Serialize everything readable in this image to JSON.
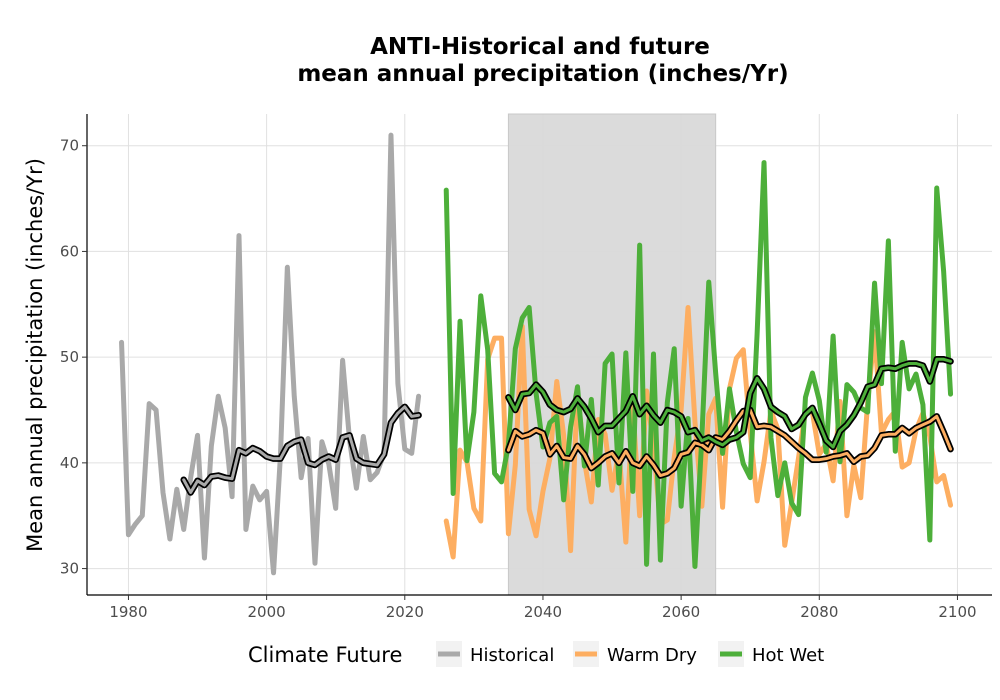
{
  "chart_data": {
    "type": "line",
    "title_line1": "ANTI-Historical and future",
    "title_line2": "mean annual precipitation (inches/Yr)",
    "xlabel": "",
    "ylabel": "Mean annual precipitation (inches/Yr)",
    "xlim": [
      1974,
      2105
    ],
    "ylim": [
      27.5,
      73
    ],
    "x_ticks": [
      1980,
      2000,
      2020,
      2040,
      2060,
      2080,
      2100
    ],
    "y_ticks": [
      30,
      40,
      50,
      60,
      70
    ],
    "grid": true,
    "shaded_period": [
      2035,
      2065
    ],
    "legend": {
      "title": "Climate Future",
      "position": "bottom",
      "entries": [
        {
          "label": "Historical",
          "color": "#a9a9a9"
        },
        {
          "label": "Warm Dry",
          "color": "#fdae61"
        },
        {
          "label": "Hot Wet",
          "color": "#4daf3a"
        }
      ]
    },
    "series": [
      {
        "name": "Historical",
        "color": "#a9a9a9",
        "x": [
          1979,
          1980,
          1981,
          1982,
          1983,
          1984,
          1985,
          1986,
          1987,
          1988,
          1989,
          1990,
          1991,
          1992,
          1993,
          1994,
          1995,
          1996,
          1997,
          1998,
          1999,
          2000,
          2001,
          2002,
          2003,
          2004,
          2005,
          2006,
          2007,
          2008,
          2009,
          2010,
          2011,
          2012,
          2013,
          2014,
          2015,
          2016,
          2017,
          2018,
          2019,
          2020,
          2021,
          2022
        ],
        "y": [
          51.4,
          33.2,
          34.2,
          35.0,
          45.6,
          45.0,
          37.2,
          32.8,
          37.5,
          33.7,
          38.6,
          42.6,
          31.0,
          41.6,
          46.3,
          43.3,
          36.8,
          61.5,
          33.7,
          37.8,
          36.5,
          37.3,
          29.6,
          40.7,
          58.5,
          46.3,
          38.6,
          42.3,
          30.5,
          42.0,
          39.9,
          35.7,
          49.7,
          42.2,
          37.6,
          42.5,
          38.4,
          39.1,
          40.9,
          71.0,
          47.5,
          41.3,
          40.9,
          46.3
        ]
      },
      {
        "name": "Warm Dry",
        "color": "#fdae61",
        "x": [
          2026,
          2027,
          2028,
          2029,
          2030,
          2031,
          2032,
          2033,
          2034,
          2035,
          2036,
          2037,
          2038,
          2039,
          2040,
          2041,
          2042,
          2043,
          2044,
          2045,
          2046,
          2047,
          2048,
          2049,
          2050,
          2051,
          2052,
          2053,
          2054,
          2055,
          2056,
          2057,
          2058,
          2059,
          2060,
          2061,
          2062,
          2063,
          2064,
          2065,
          2066,
          2067,
          2068,
          2069,
          2070,
          2071,
          2072,
          2073,
          2074,
          2075,
          2076,
          2077,
          2078,
          2079,
          2080,
          2081,
          2082,
          2083,
          2084,
          2085,
          2086,
          2087,
          2088,
          2089,
          2090,
          2091,
          2092,
          2093,
          2094,
          2095,
          2096,
          2097,
          2098,
          2099
        ],
        "y": [
          34.5,
          31.1,
          41.2,
          40.1,
          35.7,
          34.5,
          49.8,
          51.8,
          51.8,
          33.3,
          39.8,
          52.9,
          35.6,
          33.1,
          37.3,
          40.4,
          47.7,
          42.6,
          31.7,
          46.9,
          40.2,
          36.3,
          44.1,
          42.7,
          37.4,
          41.2,
          32.5,
          45.5,
          35.0,
          46.8,
          41.6,
          34.2,
          34.6,
          40.5,
          45.0,
          54.7,
          43.9,
          35.9,
          44.6,
          46.1,
          35.8,
          47.0,
          49.9,
          50.7,
          42.9,
          36.4,
          40.1,
          44.9,
          43.2,
          32.2,
          36.2,
          40.5,
          44.9,
          44.8,
          40.8,
          41.8,
          38.3,
          45.8,
          35.0,
          39.8,
          36.7,
          45.7,
          52.4,
          42.8,
          44.1,
          44.9,
          39.6,
          40.0,
          43.1,
          44.7,
          42.5,
          38.2,
          38.8,
          36.0
        ]
      },
      {
        "name": "Hot Wet",
        "color": "#4daf3a",
        "x": [
          2026,
          2027,
          2028,
          2029,
          2030,
          2031,
          2032,
          2033,
          2034,
          2035,
          2036,
          2037,
          2038,
          2039,
          2040,
          2041,
          2042,
          2043,
          2044,
          2045,
          2046,
          2047,
          2048,
          2049,
          2050,
          2051,
          2052,
          2053,
          2054,
          2055,
          2056,
          2057,
          2058,
          2059,
          2060,
          2061,
          2062,
          2063,
          2064,
          2065,
          2066,
          2067,
          2068,
          2069,
          2070,
          2071,
          2072,
          2073,
          2074,
          2075,
          2076,
          2077,
          2078,
          2079,
          2080,
          2081,
          2082,
          2083,
          2084,
          2085,
          2086,
          2087,
          2088,
          2089,
          2090,
          2091,
          2092,
          2093,
          2094,
          2095,
          2096,
          2097,
          2098,
          2099
        ],
        "y": [
          65.8,
          37.1,
          53.4,
          40.2,
          44.8,
          55.8,
          50.7,
          39.0,
          38.2,
          41.7,
          50.8,
          53.7,
          54.7,
          46.6,
          41.5,
          43.8,
          44.4,
          36.5,
          43.4,
          47.2,
          39.7,
          46.0,
          37.9,
          49.4,
          50.3,
          38.1,
          50.4,
          37.3,
          60.6,
          30.4,
          50.3,
          30.8,
          45.7,
          50.8,
          35.9,
          44.2,
          30.2,
          42.4,
          57.1,
          48.5,
          40.9,
          47.0,
          42.9,
          39.9,
          38.6,
          52.2,
          68.4,
          42.4,
          36.9,
          40.0,
          36.2,
          35.1,
          46.2,
          48.5,
          45.9,
          41.0,
          52.0,
          40.1,
          47.4,
          46.7,
          45.2,
          44.8,
          57.0,
          47.5,
          61.0,
          41.1,
          51.4,
          47.0,
          48.4,
          45.5,
          32.7,
          66.0,
          58.1,
          46.5
        ]
      },
      {
        "name": "",
        "color": "#000000",
        "x": [
          1988,
          1989,
          1990,
          1991,
          1992,
          1993,
          1994,
          1995,
          1996,
          1997,
          1998,
          1999,
          2000,
          2001,
          2002,
          2003,
          2004,
          2005,
          2006,
          2007,
          2008,
          2009,
          2010,
          2011,
          2012,
          2013,
          2014,
          2015,
          2016,
          2017,
          2018,
          2019,
          2020,
          2021,
          2022
        ],
        "y": [
          38.4,
          37.2,
          38.3,
          37.9,
          38.7,
          38.8,
          38.6,
          38.5,
          41.2,
          40.9,
          41.4,
          41.1,
          40.6,
          40.4,
          40.4,
          41.6,
          42.0,
          42.2,
          40.0,
          39.8,
          40.3,
          40.6,
          40.3,
          42.4,
          42.6,
          40.4,
          40.0,
          39.9,
          39.8,
          40.8,
          43.8,
          44.7,
          45.3,
          44.4,
          44.5
        ]
      },
      {
        "name": "",
        "color": "#000000",
        "x": [
          2035,
          2036,
          2037,
          2038,
          2039,
          2040,
          2041,
          2042,
          2043,
          2044,
          2045,
          2046,
          2047,
          2048,
          2049,
          2050,
          2051,
          2052,
          2053,
          2054,
          2055,
          2056,
          2057,
          2058,
          2059,
          2060,
          2061,
          2062,
          2063,
          2064,
          2065,
          2066,
          2067,
          2068,
          2069,
          2070,
          2071,
          2072,
          2073,
          2074,
          2075,
          2076,
          2077,
          2078,
          2079,
          2080,
          2081,
          2082,
          2083,
          2084,
          2085,
          2086,
          2087,
          2088,
          2089,
          2090,
          2091,
          2092,
          2093,
          2094,
          2095,
          2096,
          2097,
          2098,
          2099
        ],
        "y": [
          41.2,
          43.0,
          42.5,
          42.7,
          43.1,
          42.8,
          40.8,
          41.6,
          40.5,
          40.4,
          41.6,
          40.8,
          39.5,
          40.0,
          40.6,
          40.9,
          40.0,
          41.1,
          40.0,
          39.7,
          40.6,
          39.8,
          38.8,
          39.0,
          39.5,
          40.8,
          41.0,
          41.9,
          41.7,
          41.2,
          42.4,
          42.2,
          43.0,
          44.0,
          44.9,
          45.0,
          43.4,
          43.5,
          43.4,
          43.0,
          42.6,
          42.0,
          41.4,
          40.9,
          40.3,
          40.3,
          40.4,
          40.6,
          40.7,
          40.9,
          40.1,
          40.6,
          40.7,
          41.4,
          42.6,
          42.7,
          42.7,
          43.3,
          42.8,
          43.3,
          43.6,
          43.9,
          44.4,
          42.9,
          41.3
        ]
      },
      {
        "name": "",
        "color": "#000000",
        "x": [
          2035,
          2036,
          2037,
          2038,
          2039,
          2040,
          2041,
          2042,
          2043,
          2044,
          2045,
          2046,
          2047,
          2048,
          2049,
          2050,
          2051,
          2052,
          2053,
          2054,
          2055,
          2056,
          2057,
          2058,
          2059,
          2060,
          2061,
          2062,
          2063,
          2064,
          2065,
          2066,
          2067,
          2068,
          2069,
          2070,
          2071,
          2072,
          2073,
          2074,
          2075,
          2076,
          2077,
          2078,
          2079,
          2080,
          2081,
          2082,
          2083,
          2084,
          2085,
          2086,
          2087,
          2088,
          2089,
          2090,
          2091,
          2092,
          2093,
          2094,
          2095,
          2096,
          2097,
          2098,
          2099
        ],
        "y": [
          46.2,
          45.0,
          46.5,
          46.6,
          47.4,
          46.7,
          45.5,
          45.0,
          44.8,
          45.1,
          46.1,
          45.3,
          44.2,
          42.9,
          43.5,
          43.5,
          44.2,
          44.9,
          46.3,
          44.6,
          45.4,
          44.5,
          43.8,
          45.0,
          44.8,
          44.4,
          42.9,
          43.1,
          42.1,
          42.4,
          42.0,
          41.7,
          42.2,
          42.4,
          42.9,
          46.6,
          48.0,
          47.0,
          45.3,
          44.8,
          44.4,
          43.2,
          43.6,
          44.6,
          45.2,
          43.7,
          42.1,
          41.5,
          43.0,
          43.6,
          44.5,
          45.7,
          47.2,
          47.4,
          48.9,
          49.0,
          48.9,
          49.2,
          49.4,
          49.4,
          49.2,
          47.7,
          49.8,
          49.8,
          49.6
        ]
      }
    ]
  }
}
